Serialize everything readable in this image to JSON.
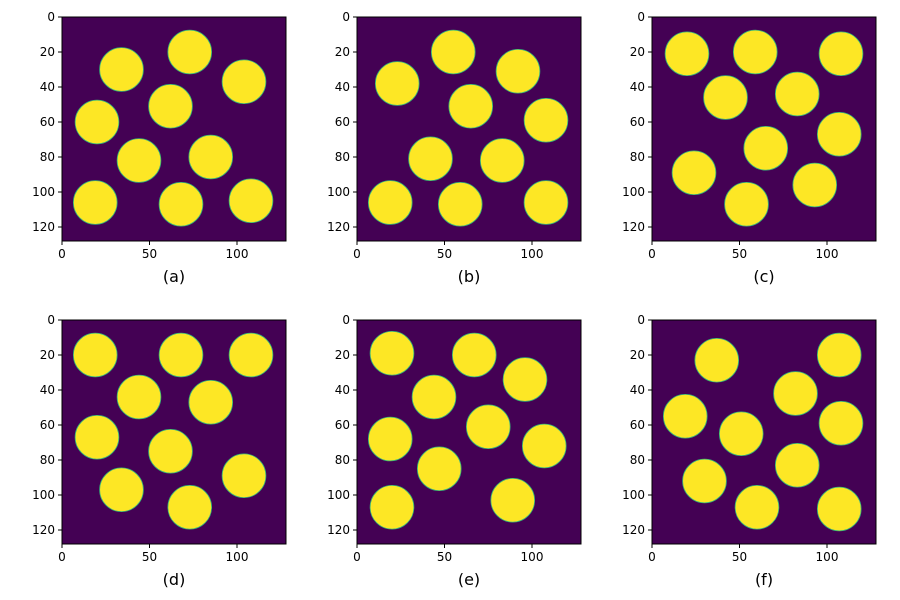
{
  "figure": {
    "image_size": [
      128,
      128
    ],
    "xticks": [
      "0",
      "50",
      "100"
    ],
    "yticks": [
      "0",
      "20",
      "40",
      "60",
      "80",
      "100",
      "120"
    ],
    "colors": {
      "background": "#440154",
      "disk": "#fde725",
      "edge": "#35b779"
    },
    "disk_radius": 12.5,
    "panels": [
      {
        "label": "(a)",
        "disks": [
          [
            73,
            20
          ],
          [
            34,
            30
          ],
          [
            104,
            37
          ],
          [
            62,
            51
          ],
          [
            20,
            60
          ],
          [
            44,
            82
          ],
          [
            85,
            80
          ],
          [
            19,
            106
          ],
          [
            68,
            107
          ],
          [
            108,
            105
          ]
        ]
      },
      {
        "label": "(b)",
        "disks": [
          [
            55,
            20
          ],
          [
            23,
            38
          ],
          [
            92,
            31
          ],
          [
            65,
            51
          ],
          [
            108,
            59
          ],
          [
            42,
            81
          ],
          [
            83,
            82
          ],
          [
            19,
            106
          ],
          [
            59,
            107
          ],
          [
            108,
            106
          ]
        ]
      },
      {
        "label": "(c)",
        "disks": [
          [
            20,
            21
          ],
          [
            59,
            20
          ],
          [
            108,
            21
          ],
          [
            42,
            46
          ],
          [
            83,
            44
          ],
          [
            107,
            67
          ],
          [
            65,
            75
          ],
          [
            24,
            89
          ],
          [
            93,
            96
          ],
          [
            54,
            107
          ]
        ]
      },
      {
        "label": "(d)",
        "disks": [
          [
            19,
            20
          ],
          [
            68,
            20
          ],
          [
            108,
            20
          ],
          [
            44,
            44
          ],
          [
            85,
            47
          ],
          [
            20,
            67
          ],
          [
            62,
            75
          ],
          [
            104,
            89
          ],
          [
            34,
            97
          ],
          [
            73,
            107
          ]
        ]
      },
      {
        "label": "(e)",
        "disks": [
          [
            20,
            19
          ],
          [
            67,
            20
          ],
          [
            96,
            34
          ],
          [
            44,
            44
          ],
          [
            75,
            61
          ],
          [
            19,
            68
          ],
          [
            107,
            72
          ],
          [
            47,
            85
          ],
          [
            89,
            103
          ],
          [
            20,
            107
          ]
        ]
      },
      {
        "label": "(f)",
        "disks": [
          [
            37,
            23
          ],
          [
            107,
            20
          ],
          [
            82,
            42
          ],
          [
            19,
            55
          ],
          [
            108,
            59
          ],
          [
            51,
            65
          ],
          [
            83,
            83
          ],
          [
            30,
            92
          ],
          [
            60,
            107
          ],
          [
            107,
            108
          ]
        ]
      }
    ]
  }
}
